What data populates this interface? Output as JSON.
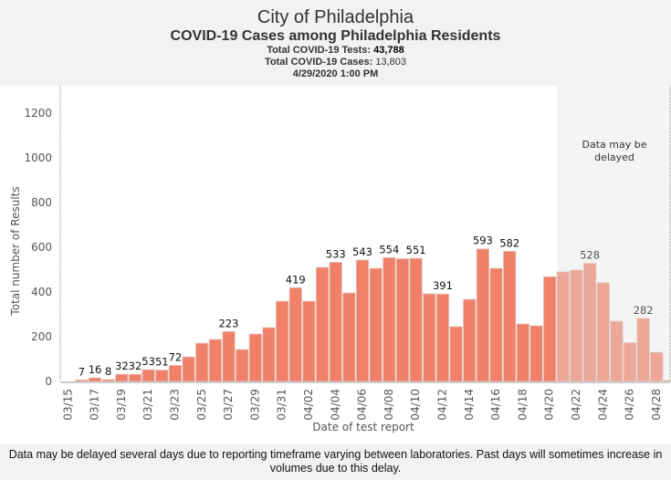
{
  "header": {
    "title": "City of Philadelphia",
    "subtitle": "COVID-19 Cases among Philadelphia Residents",
    "tests_label": "Total COVID-19 Tests: ",
    "tests_value": "43,788",
    "cases_label": "Total COVID-19 Cases: ",
    "cases_value": "13,803",
    "timestamp": "4/29/2020 1:00 PM"
  },
  "footer": {
    "note": "Data may be delayed several days due to reporting timeframe varying between laboratories.  Past days will sometimes increase in volumes due to this delay."
  },
  "colors": {
    "bar": "#f08068",
    "bar_delayed": "#eca797",
    "delayed_bg": "#f4f4f4"
  },
  "chart_data": {
    "type": "bar",
    "title": "COVID-19 Cases among Philadelphia Residents",
    "xlabel": "Date of test report",
    "ylabel": "Total number of Results",
    "ylim": [
      0,
      1300
    ],
    "yticks": [
      0,
      200,
      400,
      600,
      800,
      1000,
      1200
    ],
    "grid": false,
    "annotation": "Data may be delayed",
    "delayed_from": "04/21",
    "categories": [
      "03/15",
      "03/16",
      "03/17",
      "03/18",
      "03/19",
      "03/20",
      "03/21",
      "03/22",
      "03/23",
      "03/24",
      "03/25",
      "03/26",
      "03/27",
      "03/28",
      "03/29",
      "03/30",
      "03/31",
      "04/01",
      "04/02",
      "04/03",
      "04/04",
      "04/05",
      "04/06",
      "04/07",
      "04/08",
      "04/09",
      "04/10",
      "04/11",
      "04/12",
      "04/13",
      "04/14",
      "04/15",
      "04/16",
      "04/17",
      "04/18",
      "04/19",
      "04/20",
      "04/21",
      "04/22",
      "04/23",
      "04/24",
      "04/25",
      "04/26",
      "04/27",
      "04/28",
      "04/29"
    ],
    "xtick_labels": [
      "03/15",
      "03/17",
      "03/19",
      "03/21",
      "03/23",
      "03/25",
      "03/27",
      "03/29",
      "03/31",
      "04/02",
      "04/04",
      "04/06",
      "04/08",
      "04/10",
      "04/12",
      "04/14",
      "04/16",
      "04/18",
      "04/20",
      "04/22",
      "04/24",
      "04/26",
      "04/28"
    ],
    "values": [
      0,
      7,
      16,
      8,
      32,
      32,
      53,
      51,
      72,
      110,
      171,
      188,
      223,
      143,
      212,
      241,
      359,
      419,
      359,
      510,
      533,
      396,
      543,
      506,
      554,
      549,
      551,
      392,
      391,
      245,
      367,
      593,
      506,
      582,
      257,
      249,
      469,
      490,
      498,
      528,
      441,
      269,
      173,
      282,
      130,
      5
    ],
    "labeled": [
      "03/16",
      "03/17",
      "03/18",
      "03/19",
      "03/20",
      "03/21",
      "03/22",
      "03/23",
      "03/27",
      "04/01",
      "04/04",
      "04/06",
      "04/08",
      "04/10",
      "04/12",
      "04/15",
      "04/17",
      "04/23",
      "04/27"
    ]
  }
}
